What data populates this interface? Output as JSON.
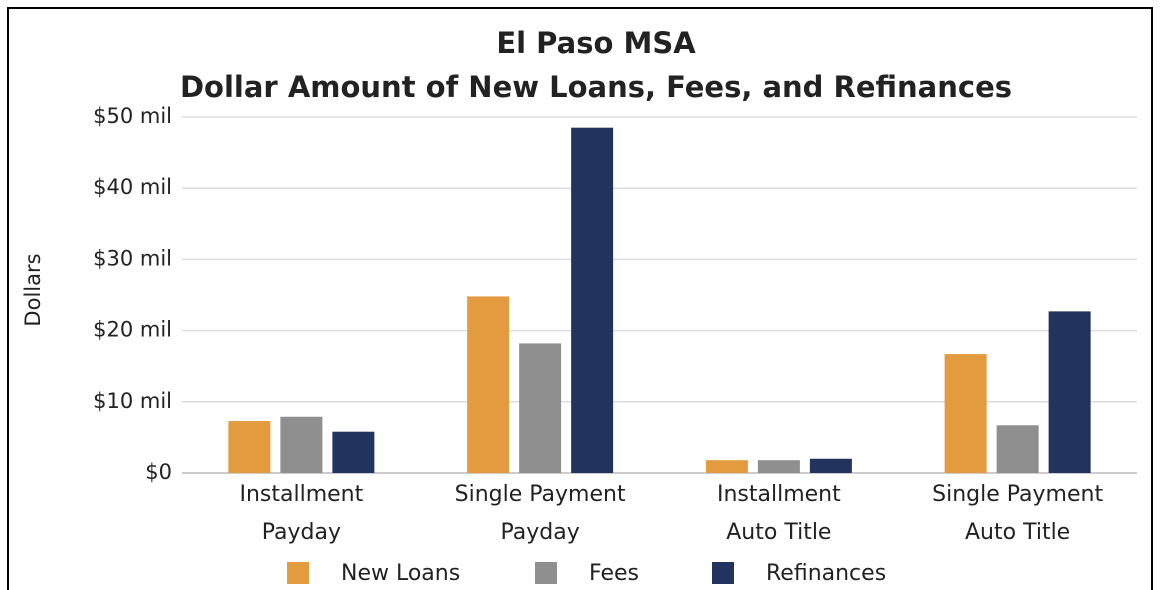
{
  "chart_data": {
    "type": "bar",
    "title": [
      "El Paso MSA",
      "Dollar Amount of New Loans, Fees, and Refinances"
    ],
    "ylabel": "Dollars",
    "categories": [
      [
        "Installment",
        "Payday"
      ],
      [
        "Single Payment",
        "Payday"
      ],
      [
        "Installment",
        "Auto Title"
      ],
      [
        "Single Payment",
        "Auto Title"
      ]
    ],
    "series": [
      {
        "name": "New Loans",
        "color": "#e39b3f",
        "values": [
          7300000,
          24800000,
          1800000,
          16700000
        ]
      },
      {
        "name": "Fees",
        "color": "#8f8f8f",
        "values": [
          7900000,
          18200000,
          1800000,
          6700000
        ]
      },
      {
        "name": "Refinances",
        "color": "#22335e",
        "values": [
          5800000,
          48500000,
          2000000,
          22700000
        ]
      }
    ],
    "ylim": [
      0,
      50000000
    ],
    "yticks": [
      {
        "value": 0,
        "label": "$0"
      },
      {
        "value": 10000000,
        "label": "$10 mil"
      },
      {
        "value": 20000000,
        "label": "$20 mil"
      },
      {
        "value": 30000000,
        "label": "$30 mil"
      },
      {
        "value": 40000000,
        "label": "$40 mil"
      },
      {
        "value": 50000000,
        "label": "$50 mil"
      }
    ],
    "grid": true,
    "legend": "bottom"
  }
}
